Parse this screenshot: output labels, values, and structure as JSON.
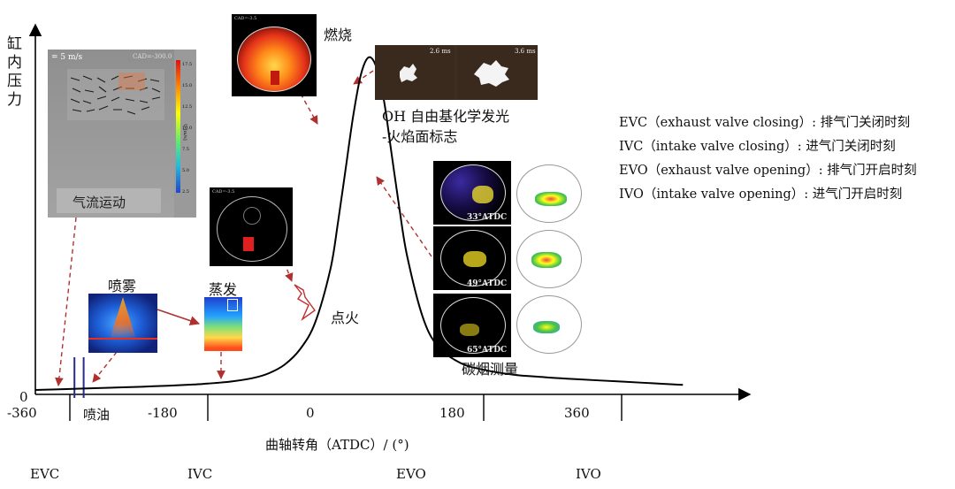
{
  "chart_data": {
    "type": "line",
    "xlabel": "曲轴转角（ATDC）/ (°)",
    "ylabel": "缸内压力",
    "x_ticks": [
      "-360",
      "-180",
      "0",
      "180",
      "360"
    ],
    "y_ticks": [
      "0"
    ],
    "xlim": [
      -405,
      450
    ],
    "ylim": [
      0,
      1
    ],
    "series": [
      {
        "x": [
          -405,
          -360,
          -300,
          -250,
          -200,
          -180,
          -150,
          -120,
          -100,
          -80,
          -60,
          -40,
          -20,
          -10,
          0,
          10,
          20,
          30,
          40,
          50,
          60,
          70,
          80,
          100,
          120,
          150,
          180,
          220,
          260,
          300,
          360,
          400,
          440
        ],
        "y": [
          0,
          0.003,
          0.007,
          0.011,
          0.016,
          0.019,
          0.025,
          0.036,
          0.05,
          0.075,
          0.12,
          0.2,
          0.36,
          0.5,
          0.66,
          0.82,
          0.94,
          0.99,
          0.96,
          0.86,
          0.7,
          0.54,
          0.4,
          0.22,
          0.13,
          0.08,
          0.06,
          0.045,
          0.038,
          0.032,
          0.025,
          0.02,
          0.015
        ]
      }
    ],
    "markers": [
      {
        "x": -360,
        "label": "EVC"
      },
      {
        "x": -180,
        "label": "IVC"
      },
      {
        "x": 180,
        "label": "EVO"
      },
      {
        "x": 360,
        "label": "IVO"
      }
    ],
    "annotations": [
      "燃烧",
      "OH 自由基化学发光",
      "-火焰面标志",
      "喷雾",
      "蒸发",
      "点火",
      "喷油",
      "碳烟测量",
      "气流运动"
    ],
    "legend": [
      "EVC（exhaust valve closing）: 排气门关闭时刻",
      "IVC（intake valve closing）: 进气门关闭时刻",
      "EVO（exhaust valve opening）: 排气门开启时刻",
      "IVO（intake valve opening）: 进气门开启时刻"
    ]
  },
  "images": {
    "airflow": {
      "speed": "= 5 m/s",
      "cad": "CAD=-300.0",
      "ticks": [
        "17.5",
        "15.0",
        "12.5",
        "10.0",
        "7.5",
        "5.0",
        "2.5"
      ],
      "unit": "U [m/s]"
    },
    "oh": {
      "t1": "2.6 ms",
      "t2": "3.6 ms"
    },
    "soot": {
      "labels": [
        "33°ATDC",
        "49°ATDC",
        "65°ATDC"
      ]
    },
    "cad_tag": "CAD=-3.5",
    "colors": {
      "curve": "#000000",
      "arrow": "#b03030",
      "marker_line": "#2a2a8a"
    }
  }
}
